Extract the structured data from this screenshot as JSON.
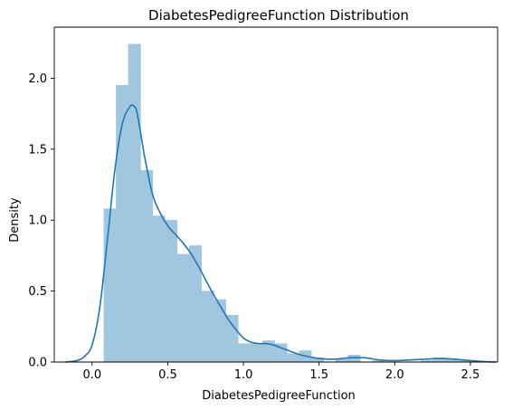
{
  "chart_data": {
    "type": "bar",
    "title": "DiabetesPedigreeFunction Distribution",
    "xlabel": "DiabetesPedigreeFunction",
    "ylabel": "Density",
    "xlim": [
      -0.25,
      2.68
    ],
    "ylim": [
      0.0,
      2.36
    ],
    "xticks": [
      0.0,
      0.5,
      1.0,
      1.5,
      2.0,
      2.5
    ],
    "xtick_labels": [
      "0.0",
      "0.5",
      "1.0",
      "1.5",
      "2.0",
      "2.5"
    ],
    "yticks": [
      0.0,
      0.5,
      1.0,
      1.5,
      2.0
    ],
    "ytick_labels": [
      "0.0",
      "0.5",
      "1.0",
      "1.5",
      "2.0"
    ],
    "bin_width": 0.0807,
    "bins": [
      {
        "x0": 0.078,
        "value": 1.08
      },
      {
        "x0": 0.159,
        "value": 1.95
      },
      {
        "x0": 0.24,
        "value": 2.24
      },
      {
        "x0": 0.32,
        "value": 1.35
      },
      {
        "x0": 0.401,
        "value": 1.03
      },
      {
        "x0": 0.482,
        "value": 1.0
      },
      {
        "x0": 0.562,
        "value": 0.76
      },
      {
        "x0": 0.643,
        "value": 0.82
      },
      {
        "x0": 0.724,
        "value": 0.5
      },
      {
        "x0": 0.804,
        "value": 0.44
      },
      {
        "x0": 0.885,
        "value": 0.33
      },
      {
        "x0": 0.966,
        "value": 0.13
      },
      {
        "x0": 1.046,
        "value": 0.13
      },
      {
        "x0": 1.127,
        "value": 0.15
      },
      {
        "x0": 1.208,
        "value": 0.13
      },
      {
        "x0": 1.288,
        "value": 0.06
      },
      {
        "x0": 1.369,
        "value": 0.08
      },
      {
        "x0": 1.45,
        "value": 0.03
      },
      {
        "x0": 1.53,
        "value": 0.0
      },
      {
        "x0": 1.611,
        "value": 0.02
      },
      {
        "x0": 1.692,
        "value": 0.05
      },
      {
        "x0": 1.772,
        "value": 0.0
      },
      {
        "x0": 1.853,
        "value": 0.01
      },
      {
        "x0": 1.934,
        "value": 0.0
      },
      {
        "x0": 2.014,
        "value": 0.0
      },
      {
        "x0": 2.095,
        "value": 0.0
      },
      {
        "x0": 2.176,
        "value": 0.01
      },
      {
        "x0": 2.256,
        "value": 0.03
      },
      {
        "x0": 2.337,
        "value": 0.02
      },
      {
        "x0": 2.418,
        "value": 0.01
      }
    ],
    "kde": {
      "x": [
        -0.18,
        -0.1,
        -0.05,
        0.0,
        0.05,
        0.1,
        0.15,
        0.2,
        0.25,
        0.28,
        0.3,
        0.35,
        0.4,
        0.45,
        0.5,
        0.55,
        0.6,
        0.65,
        0.7,
        0.75,
        0.8,
        0.85,
        0.9,
        0.95,
        1.0,
        1.05,
        1.1,
        1.15,
        1.2,
        1.25,
        1.3,
        1.35,
        1.4,
        1.5,
        1.6,
        1.7,
        1.8,
        1.9,
        2.0,
        2.1,
        2.2,
        2.3,
        2.4,
        2.5,
        2.6,
        2.67
      ],
      "y": [
        0.0,
        0.01,
        0.04,
        0.12,
        0.38,
        0.85,
        1.35,
        1.68,
        1.8,
        1.8,
        1.74,
        1.43,
        1.18,
        1.05,
        0.96,
        0.9,
        0.84,
        0.77,
        0.68,
        0.58,
        0.48,
        0.39,
        0.3,
        0.23,
        0.17,
        0.14,
        0.13,
        0.13,
        0.12,
        0.1,
        0.08,
        0.06,
        0.045,
        0.025,
        0.02,
        0.03,
        0.03,
        0.015,
        0.01,
        0.015,
        0.02,
        0.025,
        0.02,
        0.01,
        0.003,
        0.0
      ]
    },
    "colors": {
      "bars": "#a1c6e0",
      "kde_line": "#1f77b4",
      "axes": "#000000",
      "background": "#ffffff"
    },
    "grid": false,
    "legend": "none"
  }
}
